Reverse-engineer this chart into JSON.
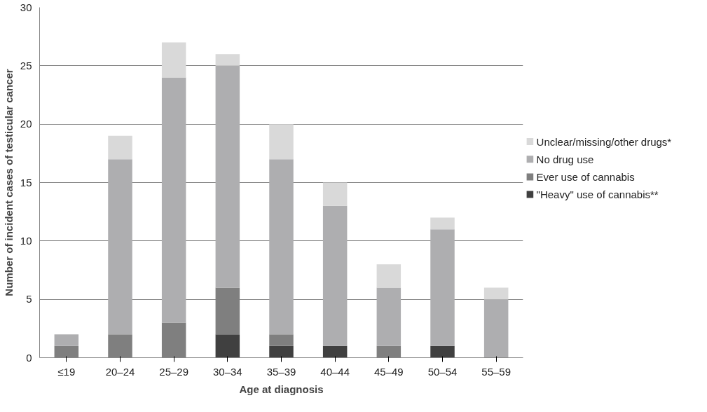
{
  "chart_data": {
    "type": "bar",
    "stacked": true,
    "xlabel": "Age at diagnosis",
    "ylabel": "Number of incident cases of testicular cancer",
    "categories": [
      "≤19",
      "20–24",
      "25–29",
      "30–34",
      "35–39",
      "40–44",
      "45–49",
      "50–54",
      "55–59"
    ],
    "series": [
      {
        "name": "\"Heavy\" use of cannabis**",
        "color": "#404040",
        "values": [
          0,
          0,
          0,
          2,
          1,
          1,
          0,
          1,
          0
        ]
      },
      {
        "name": "Ever use of cannabis",
        "color": "#7f7f7f",
        "values": [
          1,
          2,
          3,
          4,
          1,
          0,
          1,
          0,
          0
        ]
      },
      {
        "name": "No drug use",
        "color": "#aeaeb0",
        "values": [
          1,
          15,
          21,
          19,
          15,
          12,
          5,
          10,
          5
        ]
      },
      {
        "name": "Unclear/missing/other drugs*",
        "color": "#d9d9d9",
        "values": [
          0,
          2,
          3,
          1,
          3,
          2,
          2,
          1,
          1
        ]
      }
    ],
    "ylim": [
      0,
      30
    ],
    "yticks": [
      0,
      5,
      10,
      15,
      20,
      25,
      30
    ],
    "grid": "y",
    "legend": "right"
  }
}
